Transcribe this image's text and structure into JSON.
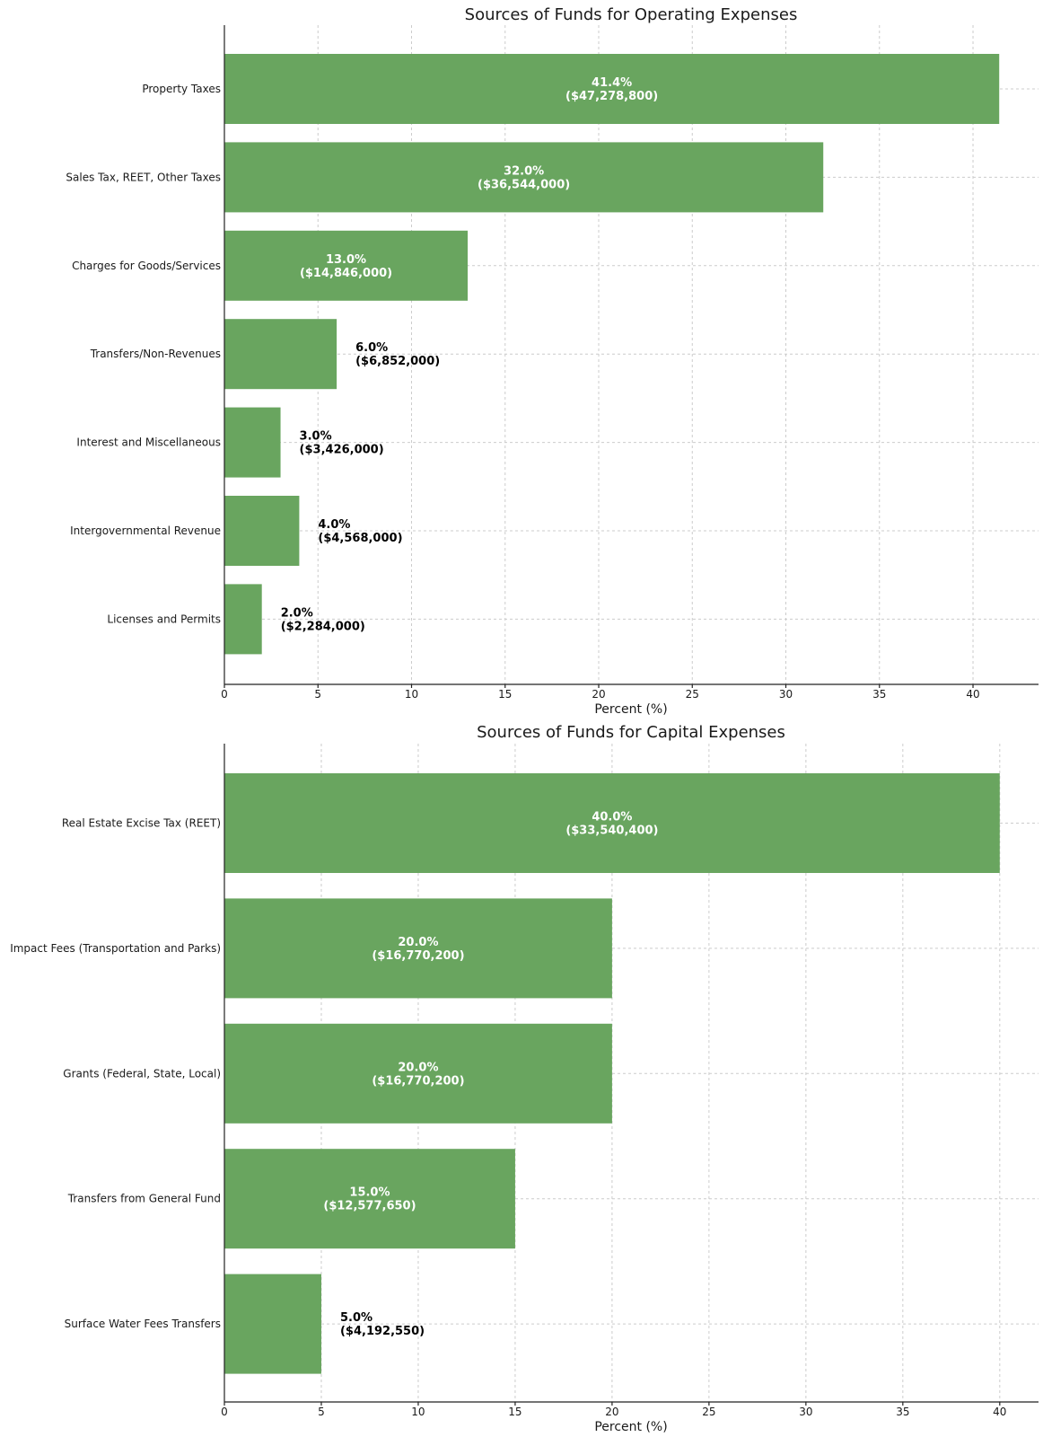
{
  "bar_color": "#69a55f",
  "chart_data": [
    {
      "type": "bar",
      "orientation": "horizontal",
      "title": "Sources of Funds for Operating Expenses",
      "xlabel": "Percent (%)",
      "ylabel": "",
      "xlim": [
        0,
        43.5
      ],
      "xticks": [
        0,
        5,
        10,
        15,
        20,
        25,
        30,
        35,
        40
      ],
      "grid": true,
      "categories": [
        "Property Taxes",
        "Sales Tax, REET, Other Taxes",
        "Charges for Goods/Services",
        "Transfers/Non-Revenues",
        "Interest and Miscellaneous",
        "Intergovernmental Revenue",
        "Licenses and Permits"
      ],
      "values": [
        41.4,
        32.0,
        13.0,
        6.0,
        3.0,
        4.0,
        2.0
      ],
      "labels": [
        [
          "41.4%",
          "($47,278,800)"
        ],
        [
          "32.0%",
          "($36,544,000)"
        ],
        [
          "13.0%",
          "($14,846,000)"
        ],
        [
          "6.0%",
          "($6,852,000)"
        ],
        [
          "3.0%",
          "($3,426,000)"
        ],
        [
          "4.0%",
          "($4,568,000)"
        ],
        [
          "2.0%",
          "($2,284,000)"
        ]
      ]
    },
    {
      "type": "bar",
      "orientation": "horizontal",
      "title": "Sources of Funds for Capital Expenses",
      "xlabel": "Percent (%)",
      "ylabel": "",
      "xlim": [
        0,
        42
      ],
      "xticks": [
        0,
        5,
        10,
        15,
        20,
        25,
        30,
        35,
        40
      ],
      "grid": true,
      "categories": [
        "Real Estate Excise Tax (REET)",
        "Impact Fees (Transportation and Parks)",
        "Grants (Federal, State, Local)",
        "Transfers from General Fund",
        "Surface Water Fees Transfers"
      ],
      "values": [
        40.0,
        20.0,
        20.0,
        15.0,
        5.0
      ],
      "labels": [
        [
          "40.0%",
          "($33,540,400)"
        ],
        [
          "20.0%",
          "($16,770,200)"
        ],
        [
          "20.0%",
          "($16,770,200)"
        ],
        [
          "15.0%",
          "($12,577,650)"
        ],
        [
          "5.0%",
          "($4,192,550)"
        ]
      ]
    }
  ]
}
